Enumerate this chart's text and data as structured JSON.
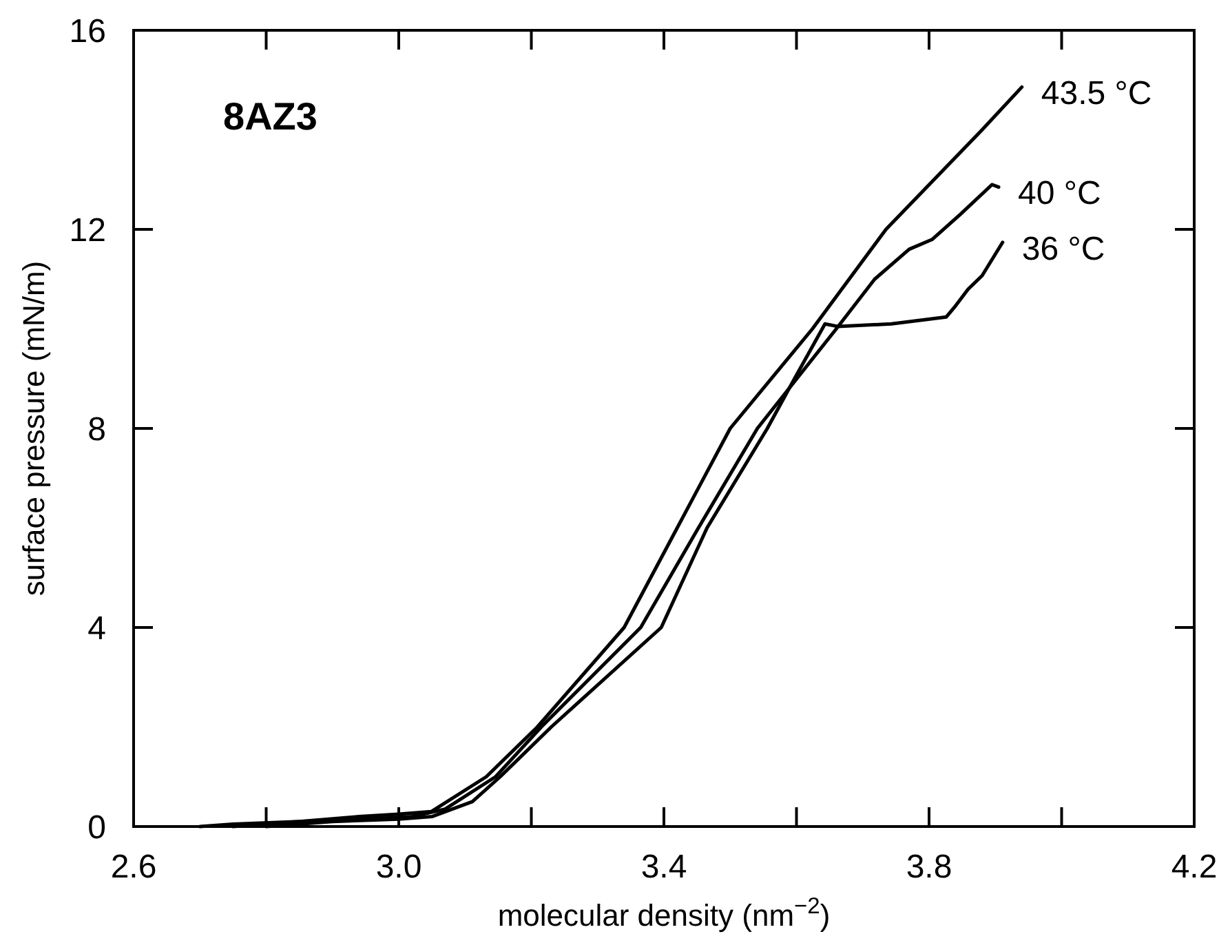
{
  "chart_data": {
    "type": "line",
    "xlabel": "molecular density (nm$^{−2}$)",
    "ylabel": "surface pressure (mN/m)",
    "annotations": [
      "8AZ3"
    ],
    "xlim": [
      2.6,
      4.2
    ],
    "ylim": [
      0,
      16
    ],
    "xticks": [
      2.6,
      {
        "value": 2.8,
        "label": null
      },
      {
        "value": 3.0,
        "label": "3.0"
      },
      {
        "value": 3.2,
        "label": null
      },
      3.4,
      {
        "value": 3.6,
        "label": null
      },
      3.8,
      {
        "value": 4.0,
        "label": null
      },
      4.2
    ],
    "yticks": [
      0,
      4,
      8,
      12,
      16
    ],
    "grid": false,
    "legend": "right",
    "marker": "none",
    "line_style": "solid",
    "series": [
      {
        "name": "43.5 °C",
        "color": "#000000",
        "x": [
          2.7,
          2.75,
          2.85,
          2.94,
          3.0,
          3.049,
          3.132,
          3.209,
          3.34,
          3.42,
          3.5,
          3.624,
          3.735,
          3.88,
          3.94
        ],
        "values": [
          0,
          0.05,
          0.1,
          0.2,
          0.25,
          0.3,
          1,
          2,
          4,
          6,
          8,
          10,
          12,
          14,
          14.86
        ]
      },
      {
        "name": "40 °C",
        "color": "#000000",
        "x": [
          2.75,
          2.85,
          2.95,
          3.02,
          3.07,
          3.146,
          3.215,
          3.365,
          3.452,
          3.541,
          3.66,
          3.718,
          3.77,
          3.805,
          3.847,
          3.895,
          3.905
        ],
        "values": [
          0,
          0.1,
          0.15,
          0.2,
          0.35,
          1,
          2,
          4,
          6,
          8,
          10,
          11,
          11.6,
          11.8,
          12.3,
          12.9,
          12.85
        ]
      },
      {
        "name": "36 °C",
        "color": "#000000",
        "x": [
          2.8,
          2.9,
          3.0,
          3.05,
          3.111,
          3.153,
          3.23,
          3.396,
          3.465,
          3.556,
          3.597,
          3.643,
          3.662,
          3.743,
          3.826,
          3.838,
          3.859,
          3.88,
          3.911
        ],
        "values": [
          0,
          0.1,
          0.15,
          0.2,
          0.5,
          1,
          2,
          4,
          6,
          8,
          9,
          10.1,
          10.05,
          10.1,
          10.24,
          10.43,
          10.8,
          11.07,
          11.74
        ]
      }
    ]
  }
}
